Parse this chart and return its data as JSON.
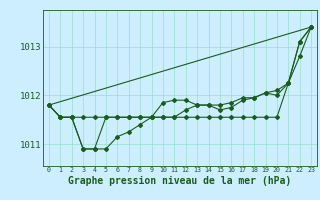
{
  "background_color": "#cceeff",
  "grid_color": "#99ddcc",
  "line_color": "#1a5c1a",
  "xlabel": "Graphe pression niveau de la mer (hPa)",
  "xlabel_fontsize": 7,
  "tick_fontsize": 6.5,
  "ytick_labels": [
    1011,
    1012,
    1013
  ],
  "ylim": [
    1010.55,
    1013.75
  ],
  "xlim": [
    -0.5,
    23.5
  ],
  "hours": [
    0,
    1,
    2,
    3,
    4,
    5,
    6,
    7,
    8,
    9,
    10,
    11,
    12,
    13,
    14,
    15,
    16,
    17,
    18,
    19,
    20,
    21,
    22,
    23
  ],
  "series": [
    [
      1011.8,
      1011.55,
      1011.55,
      1011.55,
      1011.55,
      1011.55,
      1011.55,
      1011.55,
      1011.55,
      1011.55,
      1011.55,
      1011.55,
      1011.55,
      1011.55,
      1011.55,
      1011.55,
      1011.55,
      1011.55,
      1011.55,
      1011.55,
      1011.55,
      1012.25,
      1013.1,
      1013.4
    ],
    [
      1011.8,
      1011.55,
      1011.55,
      1010.9,
      1010.9,
      1010.9,
      1011.15,
      1011.25,
      1011.4,
      1011.55,
      1011.55,
      1011.55,
      1011.7,
      1011.8,
      1011.8,
      1011.7,
      1011.75,
      1011.9,
      1011.95,
      1012.05,
      1012.0,
      1012.25,
      1012.8,
      1013.4
    ],
    [
      1011.8,
      1011.55,
      1011.55,
      1010.9,
      1010.9,
      1011.55,
      1011.55,
      1011.55,
      1011.55,
      1011.55,
      1011.85,
      1011.9,
      1011.9,
      1011.8,
      1011.8,
      1011.8,
      1011.85,
      1011.95,
      1011.95,
      1012.05,
      1012.1,
      1012.25,
      1013.1,
      1013.4
    ]
  ],
  "diagonal_series": [
    1011.8,
    1013.4
  ]
}
